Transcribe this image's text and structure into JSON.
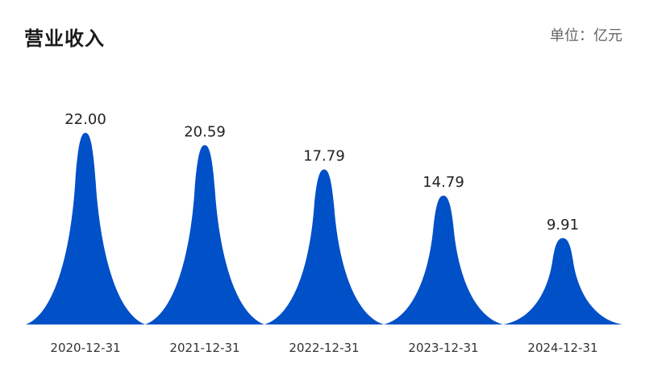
{
  "header": {
    "title": "营业收入",
    "unit": "单位：亿元"
  },
  "chart_data": {
    "type": "bar",
    "categories": [
      "2020-12-31",
      "2021-12-31",
      "2022-12-31",
      "2023-12-31",
      "2024-12-31"
    ],
    "values": [
      22.0,
      20.59,
      17.79,
      14.79,
      9.91
    ],
    "value_labels": [
      "22.00",
      "20.59",
      "17.79",
      "14.79",
      "9.91"
    ],
    "bar_shape": "pictorial-peak",
    "bar_color": "#0050c8",
    "title": "营业收入",
    "unit": "单位：亿元",
    "xlabel": "",
    "ylabel": "",
    "ylim": [
      0,
      22
    ],
    "grid": false,
    "legend": "none"
  }
}
